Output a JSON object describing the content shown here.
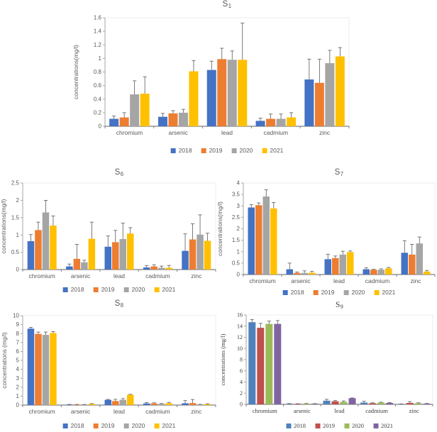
{
  "page": {
    "background": "#ffffff"
  },
  "chart_data": [
    {
      "id": "S1",
      "type": "bar",
      "title": {
        "base": "S",
        "sub": "1"
      },
      "ylabel": "concentrations(mg/l)",
      "categories": [
        "chromium",
        "arsenic",
        "lead",
        "cadmium",
        "zinc"
      ],
      "ylim": [
        0,
        1.6
      ],
      "yticks": [
        "0",
        "0.2",
        "0.4",
        "0.6",
        "0.8",
        "1",
        "1.2",
        "1.4",
        "1.6"
      ],
      "grid": false,
      "legend_position": "bottom",
      "error_bars": "up",
      "series": [
        {
          "name": "2018",
          "color": "#4472C4",
          "values": [
            0.11,
            0.14,
            0.83,
            0.08,
            0.69
          ],
          "errors": [
            0.04,
            0.05,
            0.13,
            0.04,
            0.3
          ]
        },
        {
          "name": "2019",
          "color": "#ED7D31",
          "values": [
            0.13,
            0.19,
            0.99,
            0.11,
            0.64
          ],
          "errors": [
            0.07,
            0.04,
            0.16,
            0.07,
            0.35
          ]
        },
        {
          "name": "2020",
          "color": "#A5A5A5",
          "values": [
            0.47,
            0.2,
            0.98,
            0.11,
            0.93
          ],
          "errors": [
            0.2,
            0.05,
            0.13,
            0.07,
            0.19
          ]
        },
        {
          "name": "2021",
          "color": "#FFC000",
          "values": [
            0.48,
            0.81,
            0.98,
            0.13,
            1.03
          ],
          "errors": [
            0.25,
            0.16,
            0.54,
            0.07,
            0.13
          ]
        }
      ]
    },
    {
      "id": "S6",
      "type": "bar",
      "title": {
        "base": "S",
        "sub": "6"
      },
      "ylabel": "concentrations(mg/l)",
      "categories": [
        "chromium",
        "arsenic",
        "lead",
        "cadmium",
        "zinc"
      ],
      "ylim": [
        0,
        2.5
      ],
      "yticks": [
        "0",
        "0.5",
        "1",
        "1.5",
        "2",
        "2.5"
      ],
      "grid": false,
      "legend_position": "bottom",
      "error_bars": "up",
      "series": [
        {
          "name": "2018",
          "color": "#4472C4",
          "values": [
            0.82,
            0.09,
            0.66,
            0.06,
            0.54
          ],
          "errors": [
            0.19,
            0.07,
            0.31,
            0.05,
            0.49
          ]
        },
        {
          "name": "2019",
          "color": "#ED7D31",
          "values": [
            1.14,
            0.31,
            0.79,
            0.09,
            0.87
          ],
          "errors": [
            0.23,
            0.42,
            0.34,
            0.05,
            0.45
          ]
        },
        {
          "name": "2020",
          "color": "#A5A5A5",
          "values": [
            1.65,
            0.21,
            0.88,
            0.05,
            1.01
          ],
          "errors": [
            0.35,
            0.06,
            0.46,
            0.05,
            0.57
          ]
        },
        {
          "name": "2021",
          "color": "#FFC000",
          "values": [
            1.27,
            0.89,
            1.04,
            0.05,
            0.83
          ],
          "errors": [
            0.28,
            0.48,
            0.17,
            0.07,
            0.22
          ]
        }
      ]
    },
    {
      "id": "S7",
      "type": "bar",
      "title": {
        "base": "S",
        "sub": "7"
      },
      "ylabel": "concentrations(mg/l)",
      "categories": [
        "chromium",
        "arsenic",
        "lead",
        "cadmium",
        "zinc"
      ],
      "ylim": [
        0,
        4
      ],
      "yticks": [
        "0",
        "0.5",
        "1",
        "1.5",
        "2",
        "2.5",
        "3",
        "3.5",
        "4"
      ],
      "grid": false,
      "legend_position": "bottom",
      "error_bars": "up",
      "series": [
        {
          "name": "2018",
          "color": "#4472C4",
          "values": [
            2.93,
            0.23,
            0.67,
            0.23,
            0.95
          ],
          "errors": [
            0.12,
            0.27,
            0.22,
            0.06,
            0.53
          ]
        },
        {
          "name": "2019",
          "color": "#ED7D31",
          "values": [
            3.03,
            0.07,
            0.72,
            0.21,
            0.87
          ],
          "errors": [
            0.1,
            0.04,
            0.09,
            0.02,
            0.45
          ]
        },
        {
          "name": "2020",
          "color": "#A5A5A5",
          "values": [
            3.41,
            0.07,
            0.87,
            0.21,
            1.36
          ],
          "errors": [
            0.29,
            0.09,
            0.15,
            0.04,
            0.28
          ]
        },
        {
          "name": "2021",
          "color": "#FFC000",
          "values": [
            2.89,
            0.08,
            0.98,
            0.27,
            0.13
          ],
          "errors": [
            0.26,
            0.06,
            0.05,
            0.04,
            0.05
          ]
        }
      ]
    },
    {
      "id": "S8",
      "type": "bar",
      "title": {
        "base": "S",
        "sub": "8"
      },
      "ylabel": "concentrations (mg/l)",
      "categories": [
        "chromium",
        "arsenic",
        "lead",
        "cadmium",
        "zinc"
      ],
      "ylim": [
        0,
        10
      ],
      "yticks": [
        "0",
        "1",
        "2",
        "3",
        "4",
        "5",
        "6",
        "7",
        "8",
        "9",
        "10"
      ],
      "grid": false,
      "legend_position": "bottom",
      "error_bars": "up",
      "series": [
        {
          "name": "2018",
          "color": "#4472C4",
          "values": [
            8.55,
            0.05,
            0.58,
            0.18,
            0.2
          ],
          "errors": [
            0.15,
            0.02,
            0.05,
            0.1,
            0.3
          ]
        },
        {
          "name": "2019",
          "color": "#ED7D31",
          "values": [
            7.96,
            0.05,
            0.45,
            0.18,
            0.22
          ],
          "errors": [
            0.21,
            0.02,
            0.19,
            0.07,
            0.4
          ]
        },
        {
          "name": "2020",
          "color": "#A5A5A5",
          "values": [
            7.85,
            0.05,
            0.58,
            0.13,
            0.05
          ],
          "errors": [
            0.32,
            0.02,
            0.14,
            0.04,
            0.03
          ]
        },
        {
          "name": "2021",
          "color": "#FFC000",
          "values": [
            8.06,
            0.12,
            1.15,
            0.2,
            0.1
          ],
          "errors": [
            0.16,
            0.04,
            0.05,
            0.1,
            0.04
          ]
        }
      ]
    },
    {
      "id": "S9",
      "type": "bar",
      "title": {
        "base": "S",
        "sub": "9"
      },
      "ylabel": "concentrations (mg/l)",
      "categories": [
        "chromium",
        "arsenic",
        "lead",
        "cadmium",
        "zinc"
      ],
      "ylim": [
        0,
        16
      ],
      "yticks": [
        "0",
        "2",
        "4",
        "6",
        "8",
        "10",
        "12",
        "14",
        "16"
      ],
      "grid": false,
      "legend_position": "bottom",
      "error_bars": "up",
      "series": [
        {
          "name": "2018",
          "color": "#4F81BD",
          "values": [
            14.7,
            0.1,
            0.65,
            0.32,
            0.05
          ],
          "errors": [
            0.5,
            0.04,
            0.25,
            0.23,
            0.02
          ]
        },
        {
          "name": "2019",
          "color": "#C0504D",
          "values": [
            13.7,
            0.08,
            0.55,
            0.2,
            0.25
          ],
          "errors": [
            0.8,
            0.03,
            0.13,
            0.08,
            0.23
          ]
        },
        {
          "name": "2020",
          "color": "#9BBB59",
          "values": [
            14.4,
            0.12,
            0.45,
            0.3,
            0.2
          ],
          "errors": [
            0.5,
            0.04,
            0.17,
            0.08,
            0.08
          ]
        },
        {
          "name": "2021",
          "color": "#8064A2",
          "values": [
            14.4,
            0.1,
            1.1,
            0.25,
            0.12
          ],
          "errors": [
            0.6,
            0.03,
            0.05,
            0.05,
            0.04
          ]
        }
      ]
    }
  ]
}
